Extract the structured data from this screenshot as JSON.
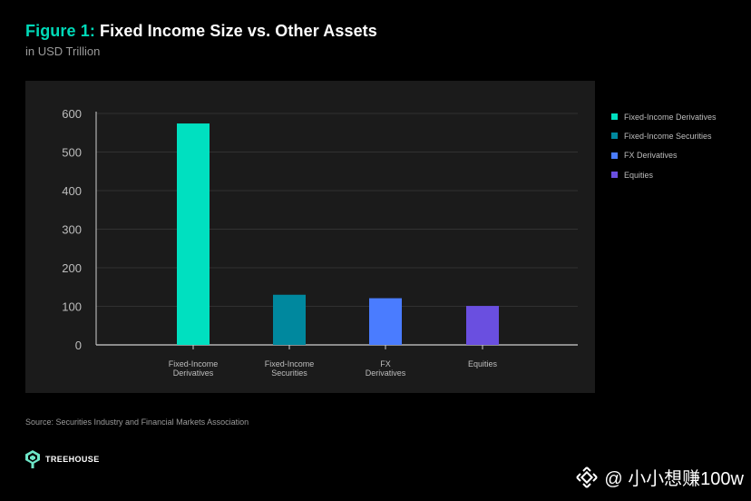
{
  "header": {
    "figure_label": "Figure 1:",
    "title": "Fixed Income Size vs. Other Assets",
    "subtitle": "in USD Trillion"
  },
  "chart_data": {
    "type": "bar",
    "title": "Fixed Income Size vs. Other Assets",
    "subtitle": "in USD Trillion",
    "categories": [
      "Fixed-Income Derivatives",
      "Fixed-Income Securities",
      "FX Derivatives",
      "Equities"
    ],
    "category_labels": [
      [
        "Fixed-Income",
        "Derivatives"
      ],
      [
        "Fixed-Income",
        "Securities"
      ],
      [
        "FX",
        "Derivatives"
      ],
      [
        "Equities"
      ]
    ],
    "values": [
      574,
      130,
      121,
      101
    ],
    "colors": [
      "#00e0c0",
      "#00889e",
      "#4a7cff",
      "#6a4fe0"
    ],
    "ylim": [
      0,
      600
    ],
    "yticks": [
      0,
      100,
      200,
      300,
      400,
      500,
      600
    ],
    "grid": true,
    "legend_position": "right",
    "xlabel": "",
    "ylabel": ""
  },
  "legend": {
    "items": [
      {
        "label": "Fixed-Income Derivatives",
        "color": "#00e0c0"
      },
      {
        "label": "Fixed-Income Securities",
        "color": "#00889e"
      },
      {
        "label": "FX Derivatives",
        "color": "#4a7cff"
      },
      {
        "label": "Equities",
        "color": "#6a4fe0"
      }
    ]
  },
  "footer": {
    "source": "Source: Securities Industry and Financial Markets Association",
    "logo_text": "TREEHOUSE",
    "watermark": "@ 小小想赚100w"
  },
  "colors": {
    "background": "#000000",
    "panel": "#1b1b1b",
    "accent": "#00d9b8"
  }
}
